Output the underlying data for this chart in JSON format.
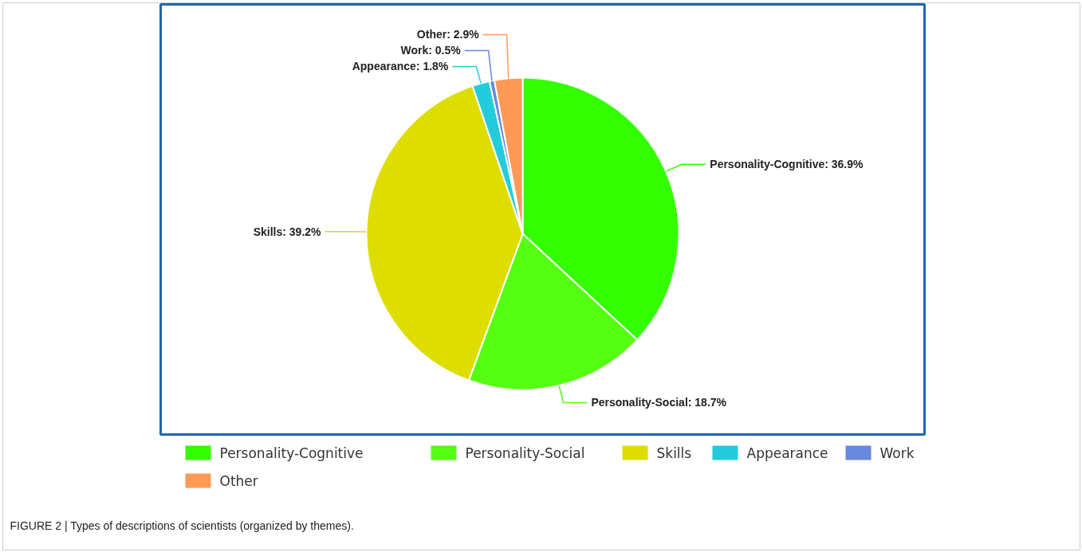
{
  "chart_data": {
    "type": "pie",
    "categories": [
      "Personality-Cognitive",
      "Personality-Social",
      "Skills",
      "Appearance",
      "Work",
      "Other"
    ],
    "values": [
      36.9,
      18.7,
      39.2,
      1.8,
      0.5,
      2.9
    ],
    "colors": [
      "#33ff00",
      "#55ff11",
      "#dddd00",
      "#22ccdd",
      "#6688dd",
      "#ff9955"
    ],
    "value_labels": [
      "Personality-Cognitive: 36.9%",
      "Personality-Social: 18.7%",
      "Skills: 39.2%",
      "Appearance: 1.8%",
      "Work: 0.5%",
      "Other: 2.9%"
    ],
    "legend": "bottom",
    "annotations": [
      "FIGURE 2 | Types of descriptions of scientists (organized by themes)."
    ]
  }
}
